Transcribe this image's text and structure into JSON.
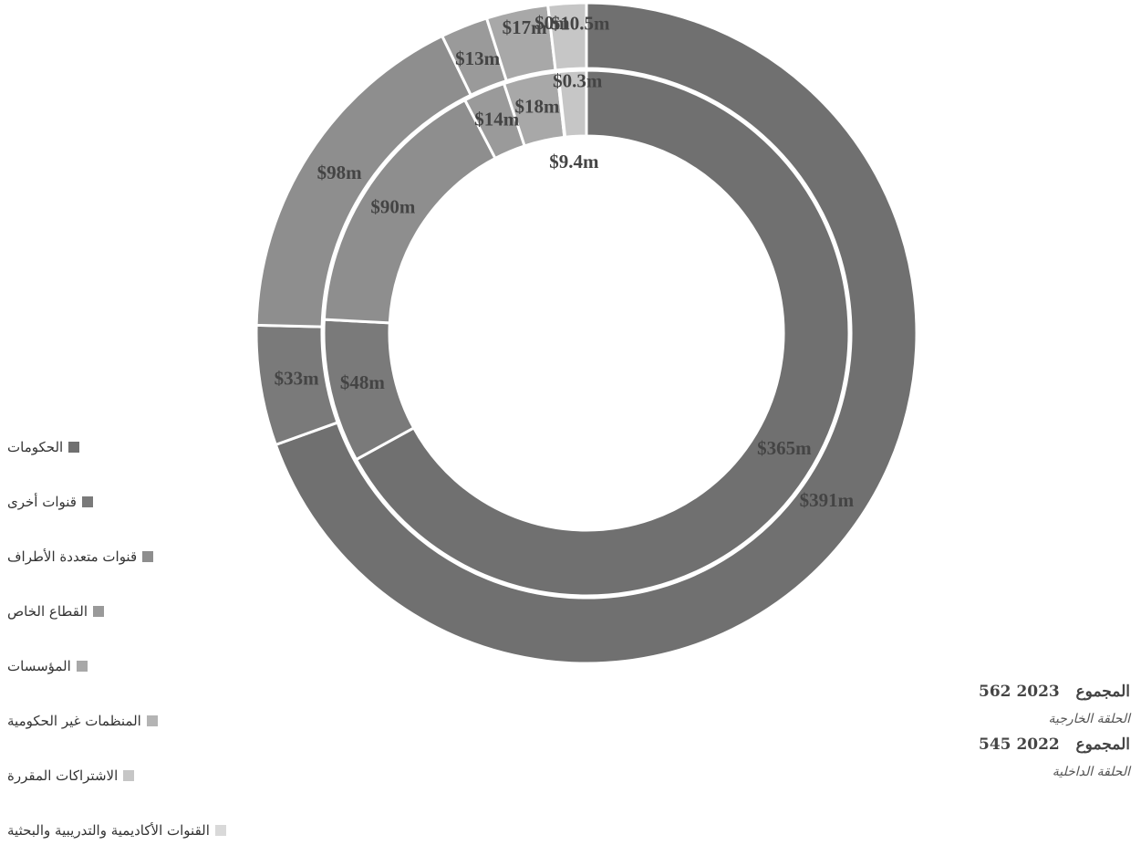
{
  "chart_data": {
    "type": "pie",
    "style": "nested-donut",
    "categories": [
      "الحكومات",
      "قنوات أخرى",
      "قنوات متعددة الأطراف",
      "القطاع الخاص",
      "المؤسسات",
      "المنظمات غير الحكومية",
      "الاشتراكات المقررة",
      "القنوات الأكاديمية والتدريبية والبحثية"
    ],
    "colors": [
      "#707070",
      "#7a7a7a",
      "#8e8e8e",
      "#9a9a9a",
      "#a8a8a8",
      "#b4b4b4",
      "#c6c6c6",
      "#d9d9d9"
    ],
    "series": [
      {
        "name": "2023",
        "ring": "outer",
        "values": [
          391,
          33,
          98,
          13,
          17,
          0,
          10.5,
          0
        ],
        "labels": [
          "$391m",
          "$33m",
          "$98m",
          "$13m",
          "$17m",
          "$0m",
          "$10.5m",
          ""
        ]
      },
      {
        "name": "2022",
        "ring": "inner",
        "values": [
          365,
          48,
          90,
          14,
          18,
          0.3,
          9.4,
          0
        ],
        "labels": [
          "$365m",
          "$48m",
          "$90m",
          "$14m",
          "$18m",
          "$0.3m",
          "$9.4m",
          ""
        ]
      }
    ],
    "legend_position": "left"
  },
  "totals": [
    {
      "year": "2023",
      "label": "المجموع",
      "value": "562",
      "caption": "الحلقة الخارجية"
    },
    {
      "year": "2022",
      "label": "المجموع",
      "value": "545",
      "caption": "الحلقة الداخلية"
    }
  ]
}
